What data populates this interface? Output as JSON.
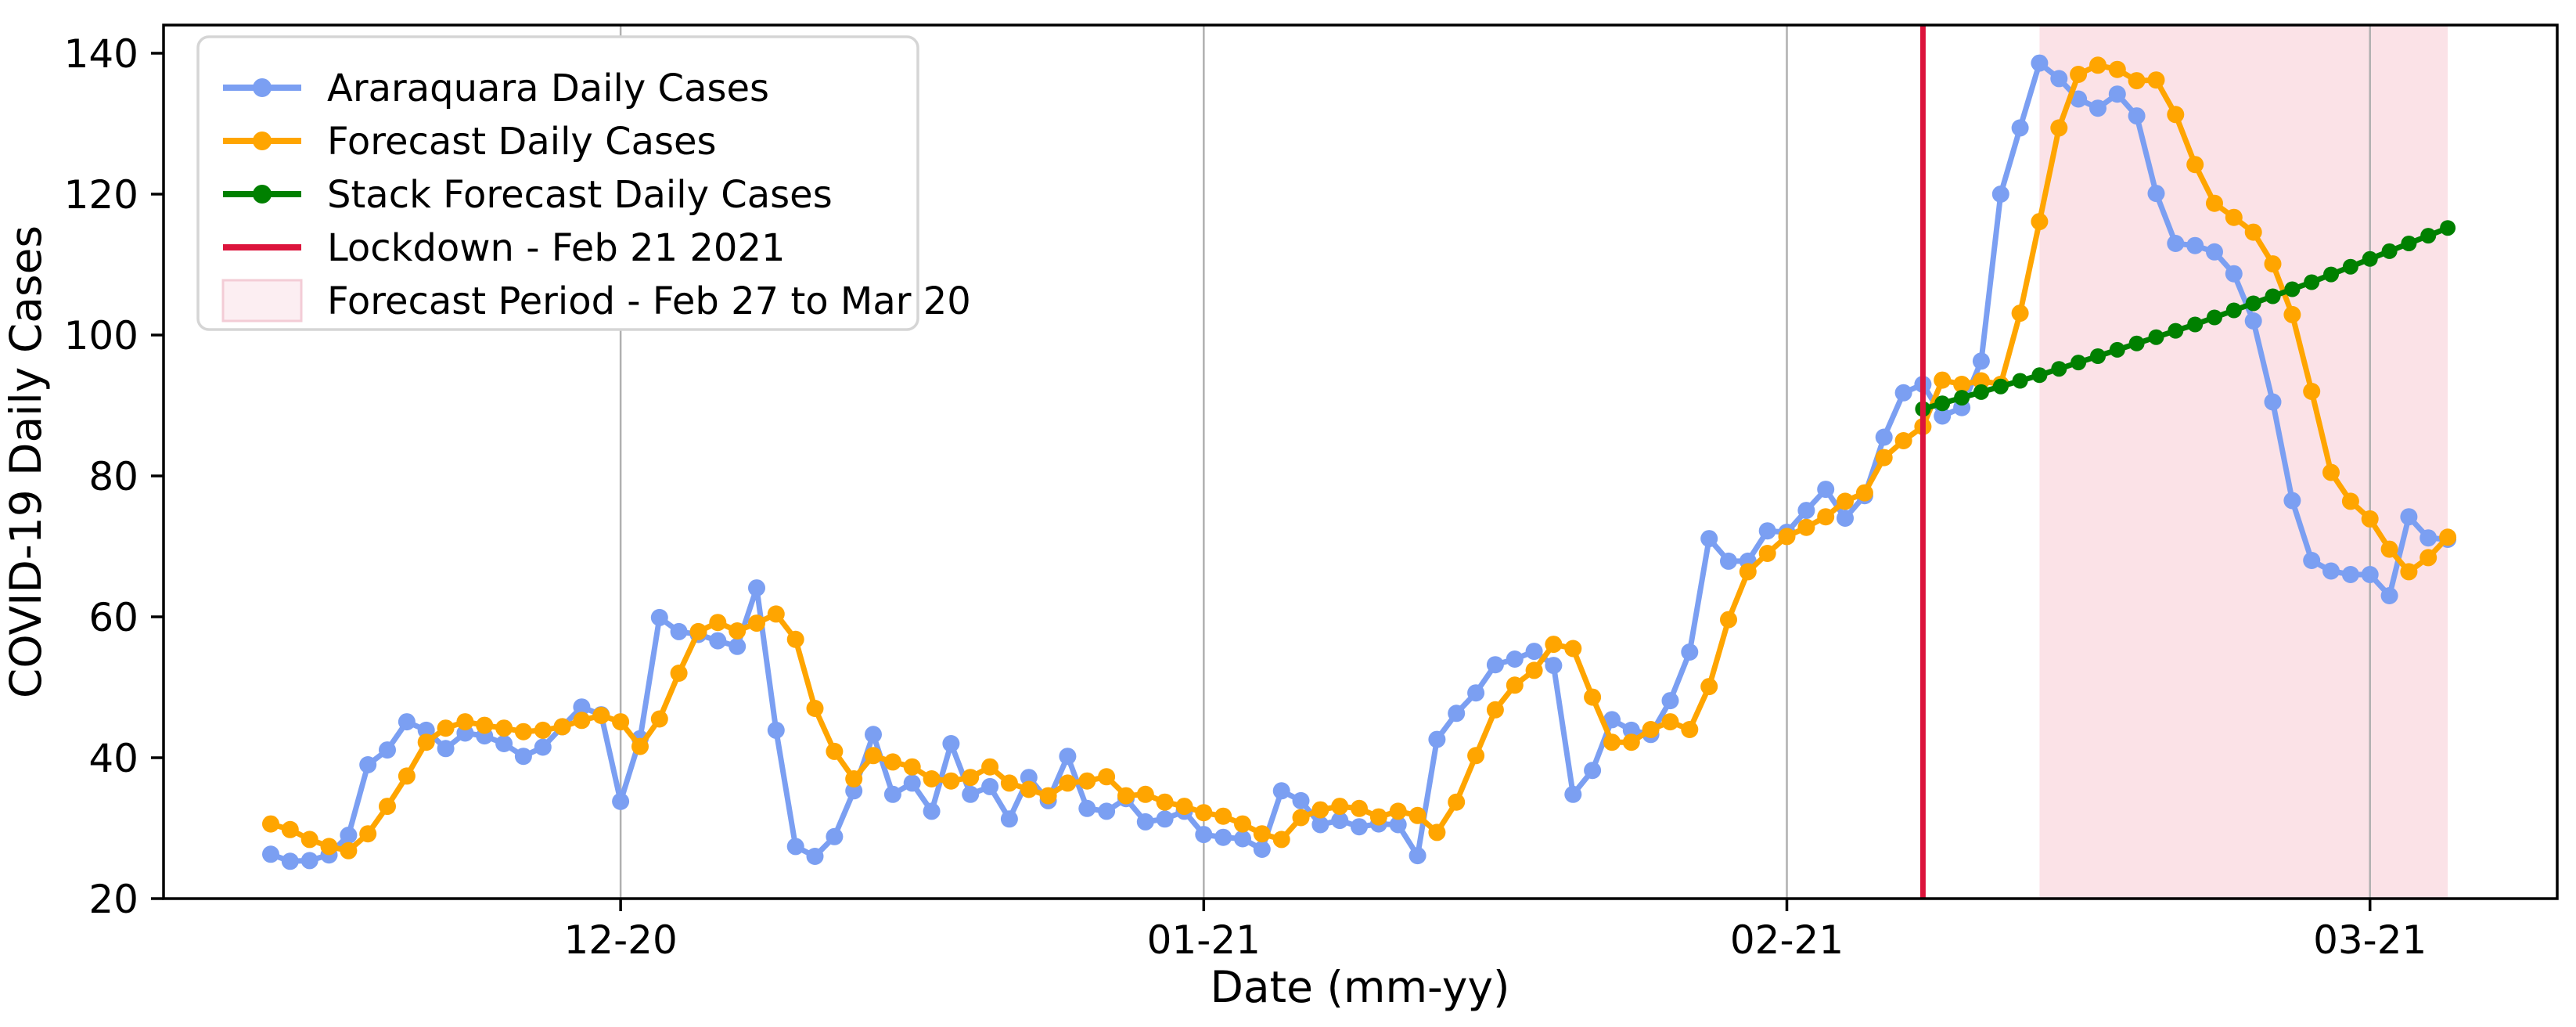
{
  "figure": {
    "background": "#ffffff",
    "xlabel": "Date (mm-yy)",
    "ylabel": "COVID-19 Daily Cases"
  },
  "axes": {
    "y_ticks": [
      20,
      40,
      60,
      80,
      100,
      120,
      140
    ],
    "x_ticks": [
      {
        "label": "12-20",
        "day_index": 18
      },
      {
        "label": "01-21",
        "day_index": 48
      },
      {
        "label": "02-21",
        "day_index": 78
      },
      {
        "label": "03-21",
        "day_index": 108
      }
    ],
    "ylim": [
      20,
      144
    ],
    "grid": "vertical",
    "grid_color": "#b0b0b0",
    "spine_color": "#000000"
  },
  "legend": {
    "position": "upper-left",
    "border_color": "#d5d5d5",
    "background": "#ffffff",
    "entries": [
      {
        "label": "Araraquara Daily Cases",
        "kind": "line-marker",
        "color": "#7b9ff2"
      },
      {
        "label": "Forecast Daily Cases",
        "kind": "line-marker",
        "color": "#ffa500"
      },
      {
        "label": "Stack Forecast Daily Cases",
        "kind": "line-marker",
        "color": "#008000"
      },
      {
        "label": "Lockdown - Feb 21 2021",
        "kind": "line",
        "color": "#dc143c"
      },
      {
        "label": "Forecast Period - Feb 27 to Mar 20",
        "kind": "patch",
        "color": "#fceef2",
        "edge": "#f3ccd6"
      }
    ]
  },
  "annotations": {
    "lockdown": {
      "label": "Lockdown - Feb 21 2021",
      "day_index": 85,
      "color": "#dc143c"
    },
    "forecast_period": {
      "label": "Forecast Period - Feb 27 to Mar 20",
      "start_day_index": 91,
      "end_day_index": 112,
      "fill": "rgba(220,20,60,0.12)"
    }
  },
  "chart_data": {
    "type": "line",
    "x_unit": "day-index (daily data, Nov 28 2020 = index 0, Mar 20 2021 = index 112)",
    "xlabel": "Date (mm-yy)",
    "ylabel": "COVID-19 Daily Cases",
    "ylim": [
      20,
      144
    ],
    "legend_position": "upper-left",
    "grid": "vertical-only",
    "series": [
      {
        "name": "Araraquara Daily Cases",
        "color": "#7b9ff2",
        "start_index": 0,
        "values": [
          26.3,
          25.3,
          25.4,
          26.2,
          29.0,
          39.0,
          41.1,
          45.1,
          43.9,
          41.3,
          43.5,
          43.1,
          42.0,
          40.2,
          41.5,
          44.4,
          47.2,
          46.1,
          33.8,
          42.7,
          59.9,
          57.9,
          57.5,
          56.6,
          55.8,
          64.1,
          43.9,
          27.4,
          26.0,
          28.8,
          35.3,
          43.3,
          34.8,
          36.4,
          32.4,
          42.0,
          34.8,
          35.9,
          31.3,
          37.2,
          33.9,
          40.2,
          32.8,
          32.4,
          34.2,
          30.9,
          31.3,
          32.4,
          29.1,
          28.7,
          28.5,
          27.0,
          35.3,
          33.9,
          30.5,
          31.1,
          30.2,
          30.6,
          30.5,
          26.1,
          42.6,
          46.3,
          49.2,
          53.2,
          54.0,
          55.1,
          53.1,
          34.8,
          38.2,
          45.4,
          43.9,
          43.3,
          48.1,
          55.0,
          71.1,
          67.9,
          67.9,
          72.2,
          72.0,
          75.1,
          78.1,
          74.0,
          77.2,
          85.5,
          91.8,
          93.0,
          88.5,
          89.7,
          96.3,
          120.0,
          129.4,
          138.6,
          136.4,
          133.5,
          132.2,
          134.2,
          131.1,
          120.1,
          113.0,
          112.7,
          111.8,
          108.7,
          102.0,
          90.5,
          76.5,
          68.0,
          66.5,
          66.0,
          66.0,
          63.0,
          74.2,
          71.2,
          71.0
        ]
      },
      {
        "name": "Forecast Daily Cases",
        "color": "#ffa500",
        "start_index": 0,
        "values": [
          30.6,
          29.8,
          28.4,
          27.4,
          26.8,
          29.2,
          33.1,
          37.4,
          42.2,
          44.2,
          45.1,
          44.6,
          44.2,
          43.7,
          43.9,
          44.4,
          45.3,
          46.0,
          45.1,
          41.6,
          45.5,
          52.0,
          57.9,
          59.2,
          58.0,
          59.1,
          60.4,
          56.8,
          47.0,
          40.9,
          37.0,
          40.3,
          39.4,
          38.7,
          37.0,
          36.7,
          37.2,
          38.7,
          36.4,
          35.5,
          34.6,
          36.4,
          36.7,
          37.3,
          34.6,
          34.8,
          33.7,
          33.1,
          32.2,
          31.7,
          30.6,
          29.2,
          28.4,
          31.5,
          32.6,
          33.1,
          32.8,
          31.6,
          32.4,
          31.8,
          29.4,
          33.7,
          40.3,
          46.8,
          50.3,
          52.4,
          56.1,
          55.5,
          48.6,
          42.2,
          42.2,
          44.0,
          45.1,
          44.0,
          50.1,
          59.6,
          66.4,
          69.0,
          71.4,
          72.7,
          74.2,
          76.4,
          77.6,
          82.6,
          85.0,
          87.0,
          93.6,
          93.0,
          93.5,
          93.0,
          103.1,
          116.1,
          129.4,
          137.0,
          138.3,
          137.7,
          136.1,
          136.2,
          131.3,
          124.2,
          118.7,
          116.7,
          114.6,
          110.1,
          102.9,
          92.0,
          80.5,
          76.4,
          73.9,
          69.6,
          66.4,
          68.4,
          71.3
        ]
      },
      {
        "name": "Stack Forecast Daily Cases",
        "color": "#008000",
        "start_index": 85,
        "values": [
          89.5,
          90.3,
          91.1,
          91.9,
          92.7,
          93.5,
          94.3,
          95.2,
          96.1,
          97.0,
          97.9,
          98.8,
          99.7,
          100.6,
          101.5,
          102.5,
          103.5,
          104.5,
          105.5,
          106.5,
          107.5,
          108.6,
          109.7,
          110.8,
          111.9,
          113.0,
          114.1,
          115.2
        ]
      }
    ]
  }
}
